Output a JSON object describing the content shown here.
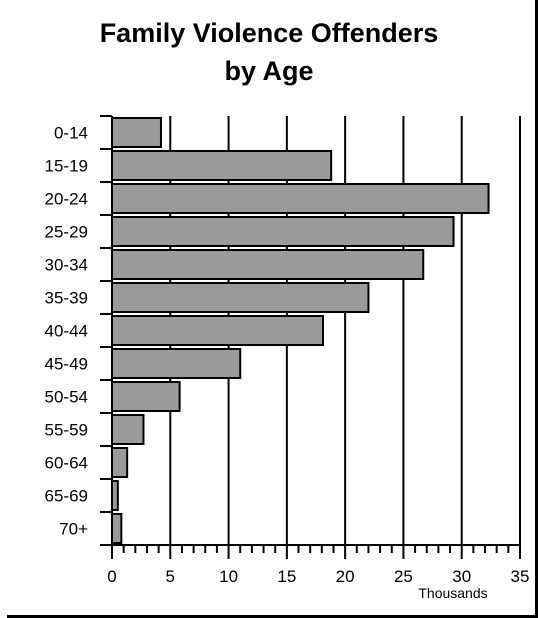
{
  "chart_data": {
    "type": "bar",
    "orientation": "horizontal",
    "title": "Family Violence Offenders",
    "subtitle": "by Age",
    "categories": [
      "0-14",
      "15-19",
      "20-24",
      "25-29",
      "30-34",
      "35-39",
      "40-44",
      "45-49",
      "50-54",
      "55-59",
      "60-64",
      "65-69",
      "70+"
    ],
    "values": [
      4.2,
      18.8,
      32.3,
      29.3,
      26.7,
      22.0,
      18.1,
      11.0,
      5.8,
      2.7,
      1.3,
      0.5,
      0.8
    ],
    "xlabel": "",
    "xunit": "Thousands",
    "ylabel": "",
    "xlim": [
      0,
      35
    ],
    "xticks": [
      "0",
      "5",
      "10",
      "15",
      "20",
      "25",
      "30",
      "35"
    ],
    "grid": true,
    "legend": "none",
    "colors": {
      "bar": "#9a9a9a",
      "edge": "#000000",
      "grid": "#000000"
    }
  }
}
